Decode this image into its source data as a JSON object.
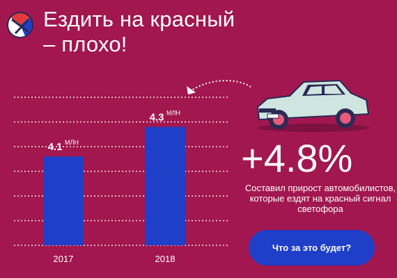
{
  "header": {
    "title_line1": "Ездить на красный",
    "title_line2": "– плохо!"
  },
  "chart_data": {
    "type": "bar",
    "categories": [
      "2017",
      "2018"
    ],
    "values": [
      4.1,
      4.3
    ],
    "value_labels": [
      "4.1",
      "4.3"
    ],
    "value_unit": "МЛН",
    "ylim": [
      3.5,
      4.5
    ],
    "grid": true,
    "bar_color": "#1f3fc8"
  },
  "stat": {
    "value": "+4.8%",
    "description": "Составил прирост автомобилистов, которые ездят на красный сигнал светофора"
  },
  "cta": {
    "label": "Что за это будет?"
  },
  "colors": {
    "background": "#a2174f",
    "accent": "#1f3fc8",
    "text": "#ffffff"
  },
  "icons": {
    "logo": "red-light-logo-icon",
    "car": "car-illustration",
    "arrow": "dotted-arrow-icon"
  }
}
